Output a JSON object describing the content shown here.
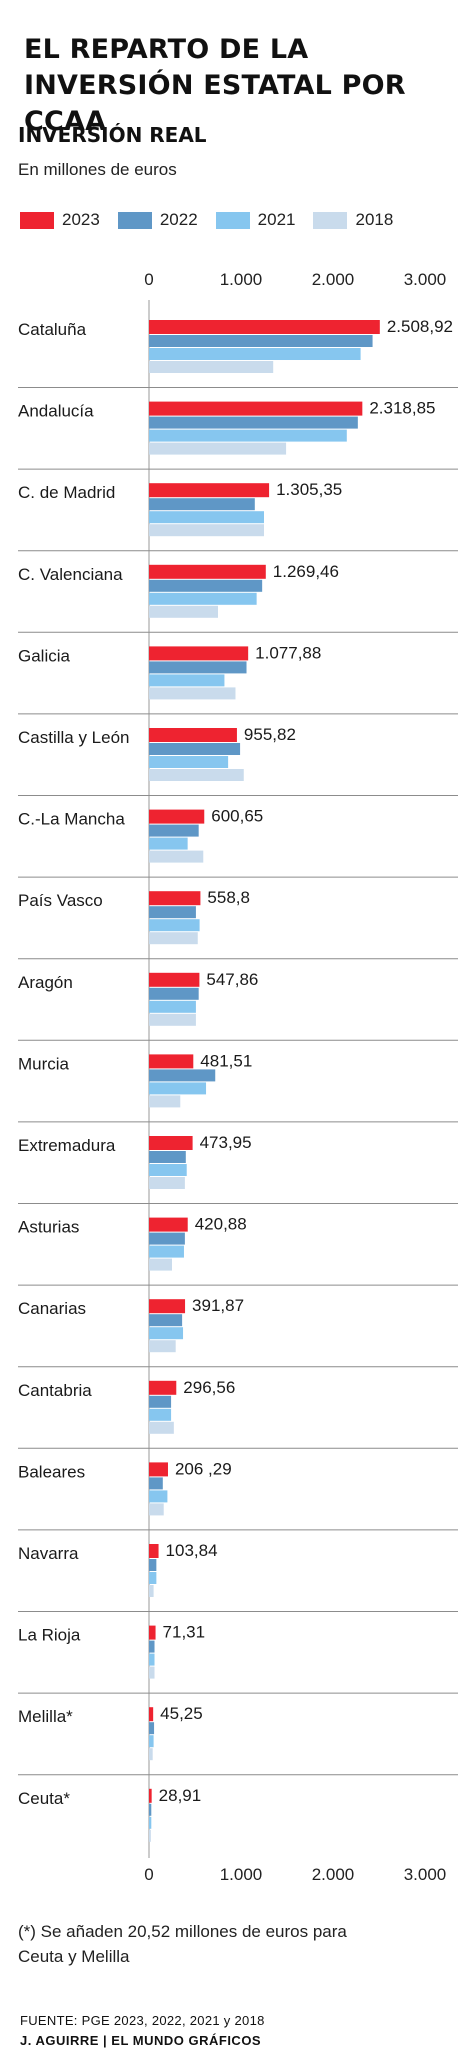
{
  "header": {
    "title": "EL REPARTO DE LA INVERSIÓN ESTATAL POR CCAA",
    "subtitle": "INVERSIÓN REAL",
    "units": "En millones de euros"
  },
  "colors": {
    "2023": "#ee2330",
    "2022": "#5f97c6",
    "2021": "#86c6ef",
    "2018": "#c9dbec"
  },
  "chart_data": {
    "type": "bar",
    "orientation": "horizontal",
    "title": "INVERSIÓN REAL",
    "subtitle": "En millones de euros",
    "xlim": [
      0,
      3000
    ],
    "ticks": [
      0,
      1000,
      2000,
      3000
    ],
    "tick_labels": [
      "0",
      "1.000",
      "2.000",
      "3.000"
    ],
    "legend_position": "top",
    "grid": false,
    "categories": [
      "Cataluña",
      "Andalucía",
      "C. de Madrid",
      "C. Valenciana",
      "Galicia",
      "Castilla y León",
      "C.-La Mancha",
      "País Vasco",
      "Aragón",
      "Murcia",
      "Extremadura",
      "Asturias",
      "Canarias",
      "Cantabria",
      "Baleares",
      "Navarra",
      "La Rioja",
      "Melilla*",
      "Ceuta*"
    ],
    "value_labels": [
      "2.508,92",
      "2.318,85",
      "1.305,35",
      "1.269,46",
      "1.077,88",
      "955,82",
      "600,65",
      "558,8",
      "547,86",
      "481,51",
      "473,95",
      "420,88",
      "391,87",
      "296,56",
      "206 ,29",
      "103,84",
      "71,31",
      "45,25",
      "28,91"
    ],
    "series": [
      {
        "name": "2023",
        "values": [
          2508.92,
          2318.85,
          1305.35,
          1269.46,
          1077.88,
          955.82,
          600.65,
          558.8,
          547.86,
          481.51,
          473.95,
          420.88,
          391.87,
          296.56,
          206.29,
          103.84,
          71.31,
          45.25,
          28.91
        ]
      },
      {
        "name": "2022",
        "values": [
          2430,
          2270,
          1150,
          1230,
          1060,
          990,
          540,
          510,
          540,
          720,
          400,
          390,
          360,
          240,
          150,
          80,
          60,
          55,
          25
        ]
      },
      {
        "name": "2021",
        "values": [
          2300,
          2150,
          1250,
          1170,
          820,
          860,
          420,
          550,
          510,
          620,
          410,
          380,
          370,
          240,
          200,
          80,
          60,
          50,
          25
        ]
      },
      {
        "name": "2018",
        "values": [
          1350,
          1490,
          1250,
          750,
          940,
          1030,
          590,
          530,
          510,
          340,
          390,
          250,
          290,
          270,
          160,
          50,
          60,
          40,
          20
        ]
      }
    ]
  },
  "footer": {
    "note": "(*) Se añaden 20,52 millones de euros para Ceuta y Melilla",
    "source": "FUENTE: PGE 2023, 2022, 2021 y 2018",
    "credit": "J. AGUIRRE | EL MUNDO GRÁFICOS"
  }
}
